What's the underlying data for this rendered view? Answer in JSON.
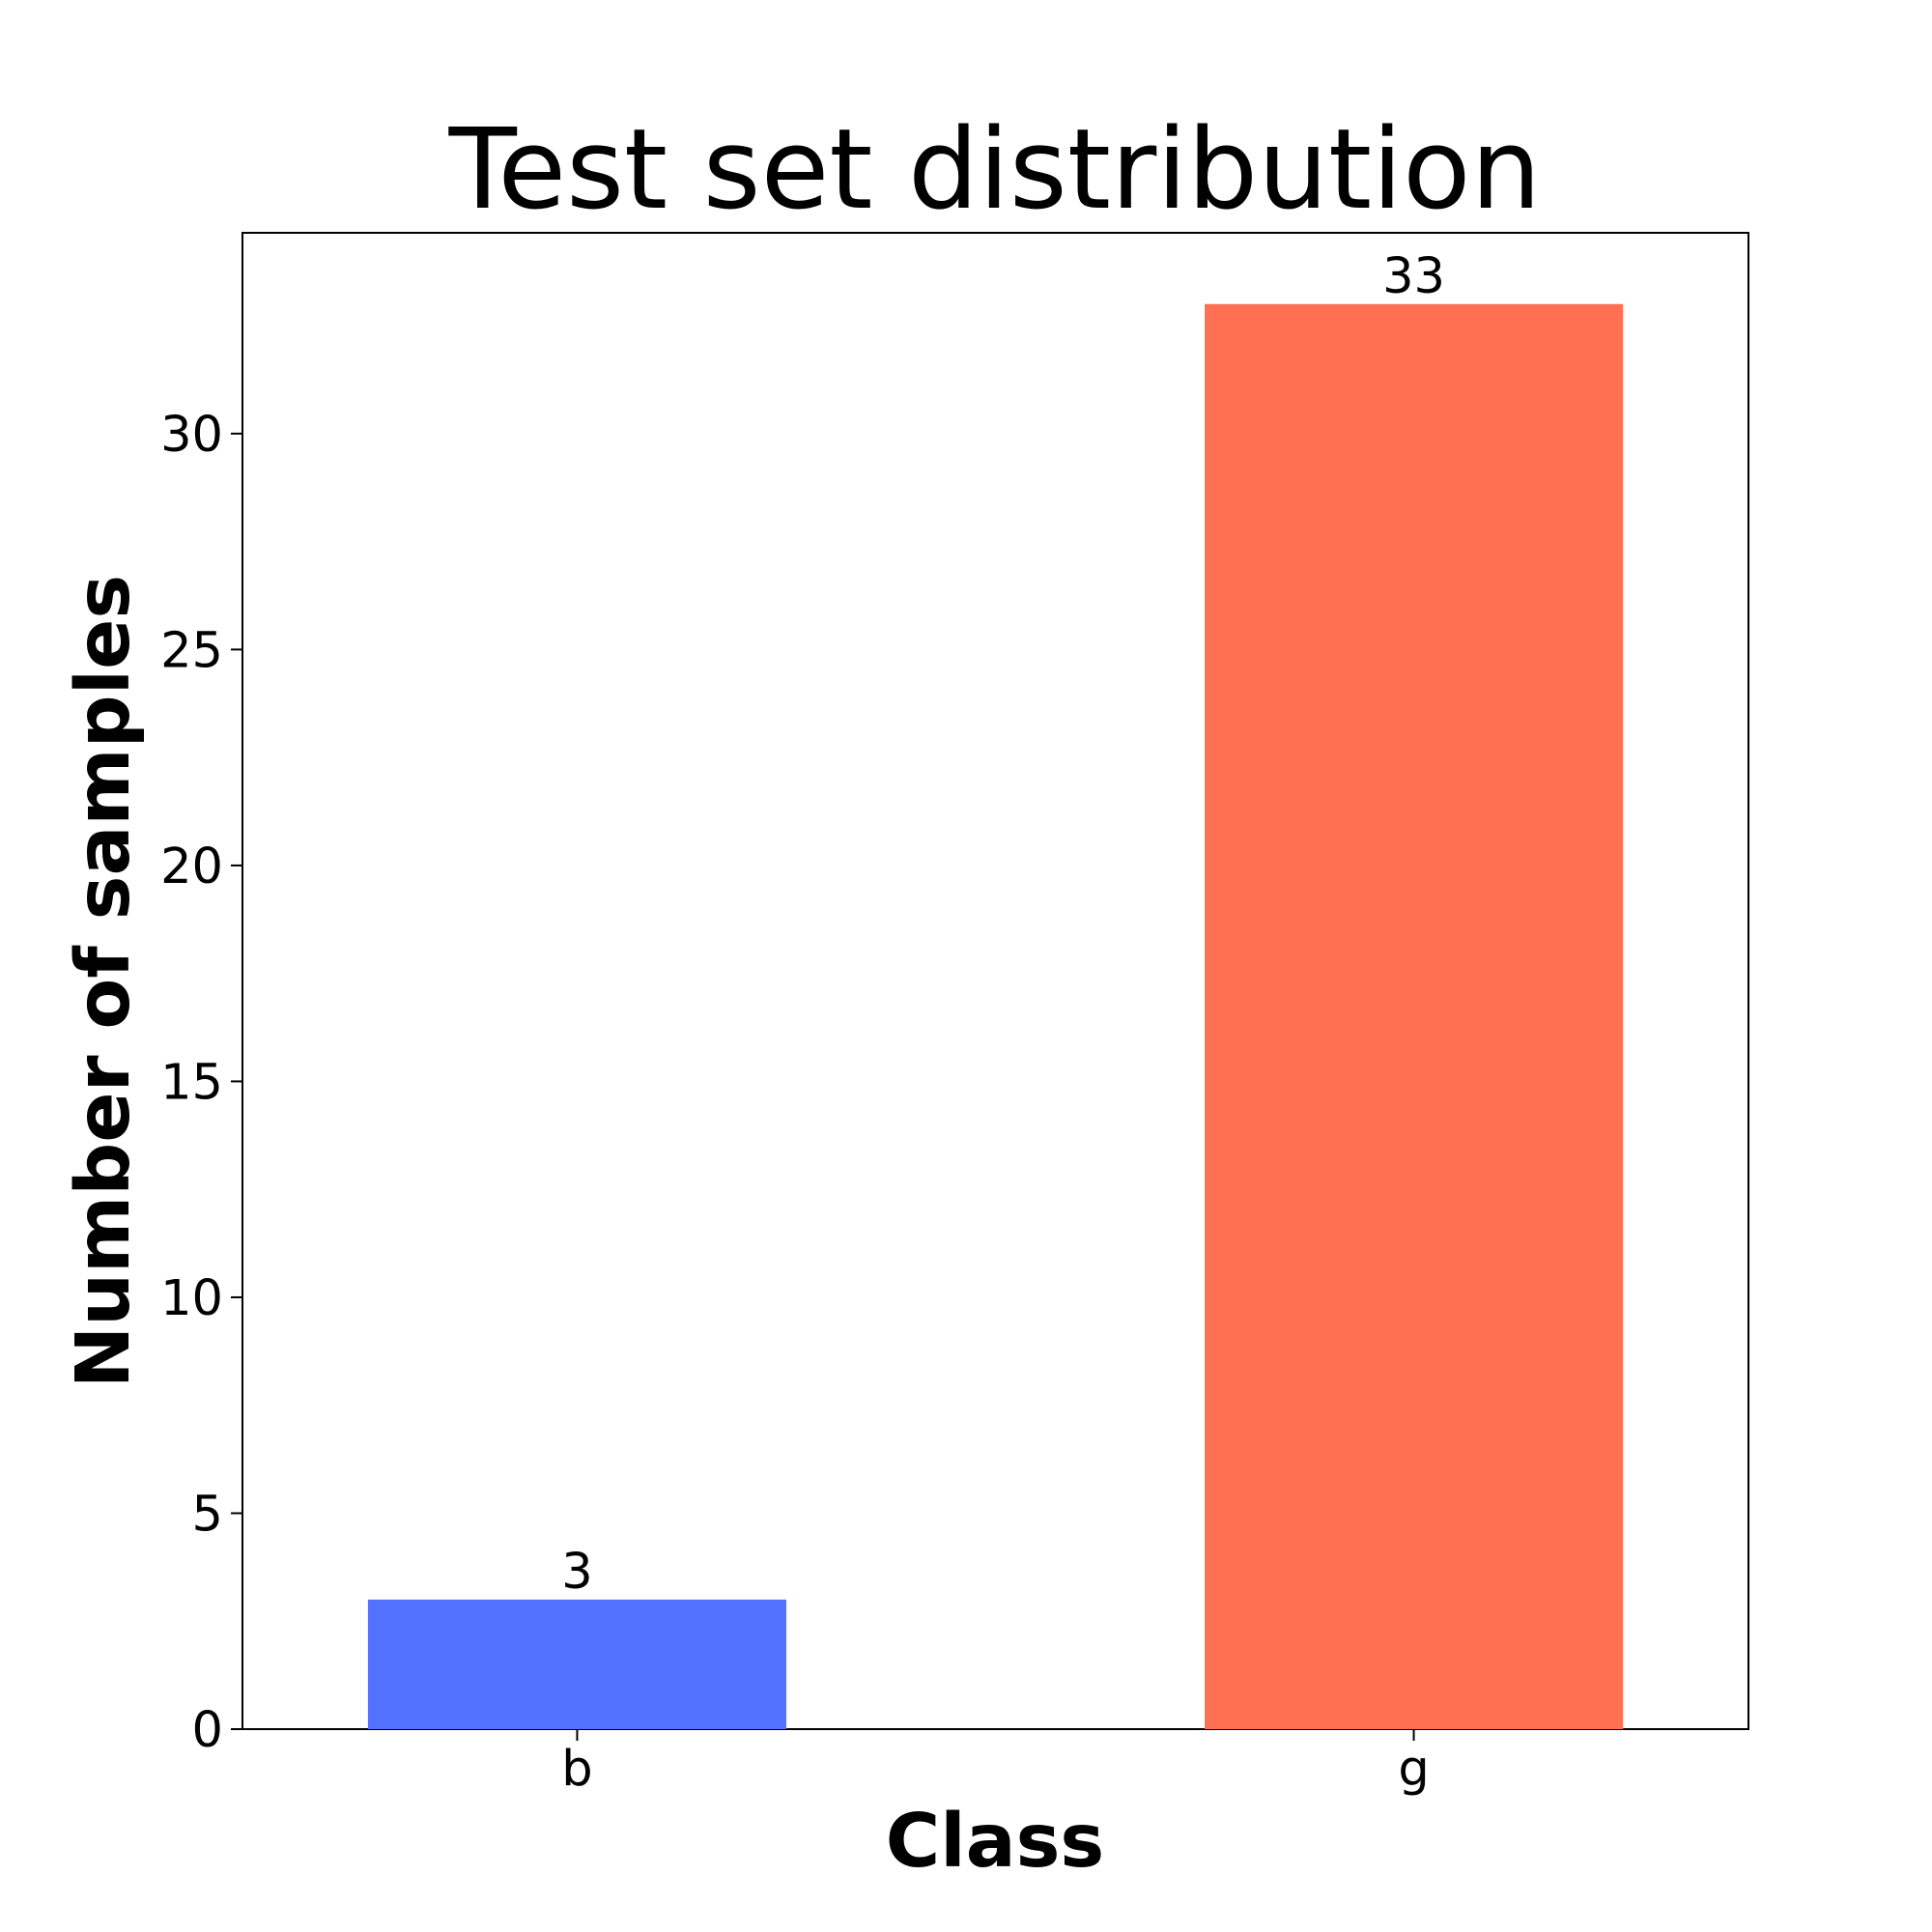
{
  "chart_data": {
    "type": "bar",
    "title": "Test set distribution",
    "xlabel": "Class",
    "ylabel": "Number of samples",
    "categories": [
      "b",
      "g"
    ],
    "values": [
      3,
      33
    ],
    "data_labels": [
      "3",
      "33"
    ],
    "colors": [
      "#5271ff",
      "#ff7052"
    ],
    "ylim": [
      0,
      34.65
    ],
    "yticks": [
      0,
      5,
      10,
      15,
      20,
      25,
      30
    ],
    "ytick_labels": [
      "0",
      "5",
      "10",
      "15",
      "20",
      "25",
      "30"
    ],
    "grid": false,
    "legend": "none"
  }
}
